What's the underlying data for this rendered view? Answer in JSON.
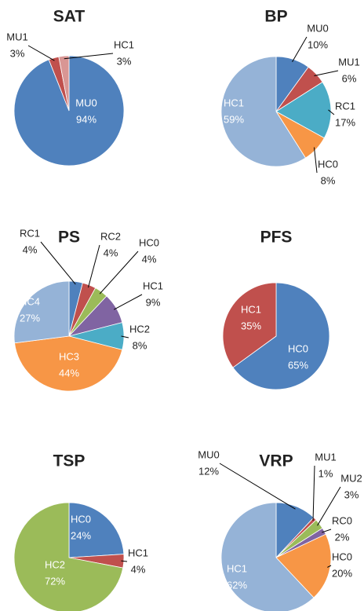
{
  "chart_data": [
    {
      "type": "pie",
      "title": "SAT",
      "categories": [
        "MU0",
        "MU1",
        "HC1"
      ],
      "values": [
        94,
        3,
        3
      ],
      "value_labels": [
        "94%",
        "3%",
        "3%"
      ],
      "colors": [
        "#4f81bd",
        "#c0504d",
        "#d99694"
      ]
    },
    {
      "type": "pie",
      "title": "BP",
      "categories": [
        "MU0",
        "MU1",
        "RC1",
        "HC0",
        "HC1"
      ],
      "values": [
        10,
        6,
        17,
        8,
        59
      ],
      "value_labels": [
        "10%",
        "6%",
        "17%",
        "8%",
        "59%"
      ],
      "colors": [
        "#4f81bd",
        "#c0504d",
        "#4bacc6",
        "#f79646",
        "#95b3d7"
      ]
    },
    {
      "type": "pie",
      "title": "PS",
      "categories": [
        "RC1",
        "RC2",
        "HC0",
        "HC1",
        "HC2",
        "HC3",
        "HC4"
      ],
      "values": [
        4,
        4,
        4,
        9,
        8,
        44,
        27
      ],
      "value_labels": [
        "4%",
        "4%",
        "4%",
        "9%",
        "8%",
        "44%",
        "27%"
      ],
      "colors": [
        "#4f81bd",
        "#c0504d",
        "#9bbb59",
        "#8064a2",
        "#4bacc6",
        "#f79646",
        "#95b3d7"
      ]
    },
    {
      "type": "pie",
      "title": "PFS",
      "categories": [
        "HC0",
        "HC1"
      ],
      "values": [
        65,
        35
      ],
      "value_labels": [
        "65%",
        "35%"
      ],
      "colors": [
        "#4f81bd",
        "#c0504d"
      ]
    },
    {
      "type": "pie",
      "title": "TSP",
      "categories": [
        "HC0",
        "HC1",
        "HC2"
      ],
      "values": [
        24,
        4,
        72
      ],
      "value_labels": [
        "24%",
        "4%",
        "72%"
      ],
      "colors": [
        "#4f81bd",
        "#c0504d",
        "#9bbb59"
      ]
    },
    {
      "type": "pie",
      "title": "VRP",
      "categories": [
        "MU0",
        "MU1",
        "MU2",
        "RC0",
        "HC0",
        "HC1"
      ],
      "values": [
        12,
        1,
        3,
        2,
        20,
        62
      ],
      "value_labels": [
        "12%",
        "1%",
        "3%",
        "2%",
        "20%",
        "62%"
      ],
      "colors": [
        "#4f81bd",
        "#c0504d",
        "#9bbb59",
        "#8064a2",
        "#f79646",
        "#95b3d7"
      ]
    }
  ]
}
